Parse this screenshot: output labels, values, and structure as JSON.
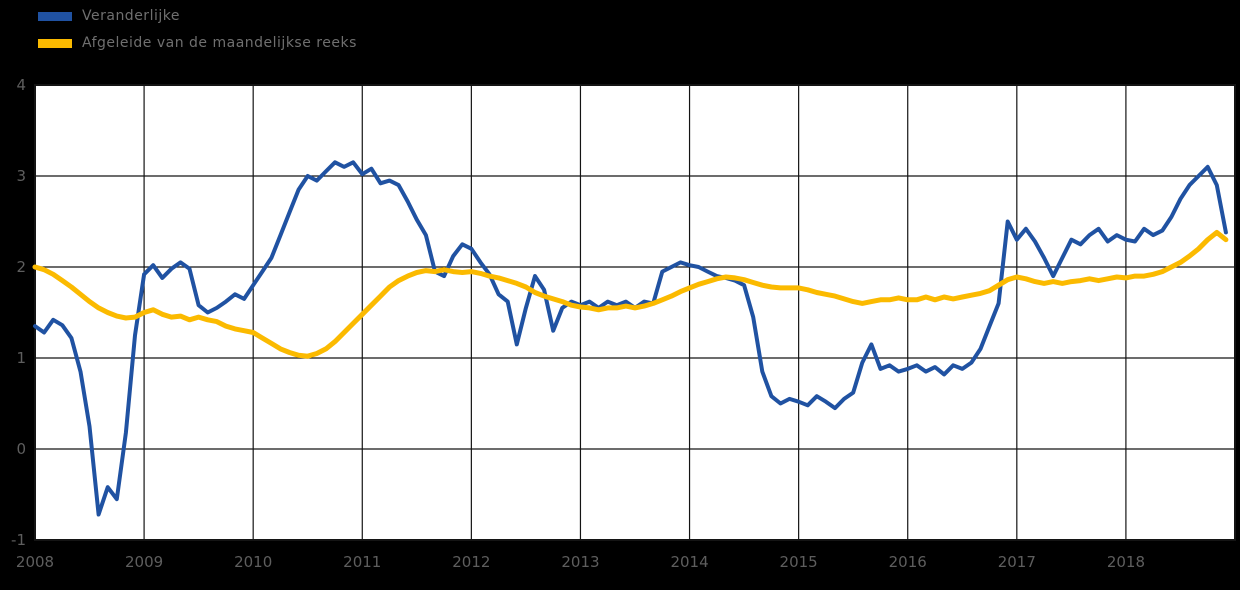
{
  "colors": {
    "background": "#000000",
    "plot_background": "#ffffff",
    "grid": "#141414",
    "axis_text": "#5e5e5e",
    "series_blue": "#2052A2",
    "series_yellow": "#FBBA00"
  },
  "legend": {
    "position": "top-left",
    "items": [
      {
        "label": "Veranderlijke",
        "color": "#2052A2"
      },
      {
        "label": "Afgeleide van de maandelijkse reeks",
        "color": "#FBBA00"
      }
    ]
  },
  "chart_data": {
    "type": "line",
    "title": "",
    "xlabel": "",
    "ylabel": "",
    "grid": true,
    "legend_position": "top-left",
    "ylim": [
      -1,
      4
    ],
    "y_tick_labels": [
      "4",
      "3",
      "2",
      "1",
      "0",
      "-1"
    ],
    "x_tick_labels": [
      "2008",
      "2009",
      "2010",
      "2011",
      "2012",
      "2013",
      "2014",
      "2015",
      "2016",
      "2017",
      "2018"
    ],
    "x_axis_span_years": 11,
    "points_per_year": 12,
    "x_start_year": 2008,
    "series": [
      {
        "name": "Veranderlijke",
        "color": "#2052A2",
        "stroke_width": 4,
        "values": [
          1.35,
          1.28,
          1.42,
          1.36,
          1.22,
          0.85,
          0.25,
          -0.72,
          -0.42,
          -0.55,
          0.18,
          1.25,
          1.92,
          2.02,
          1.88,
          1.98,
          2.05,
          1.98,
          1.58,
          1.5,
          1.55,
          1.62,
          1.7,
          1.65,
          1.8,
          1.95,
          2.1,
          2.35,
          2.6,
          2.85,
          3.0,
          2.95,
          3.05,
          3.15,
          3.1,
          3.15,
          3.02,
          3.08,
          2.92,
          2.95,
          2.9,
          2.72,
          2.52,
          2.35,
          1.95,
          1.9,
          2.12,
          2.25,
          2.2,
          2.05,
          1.92,
          1.7,
          1.62,
          1.15,
          1.55,
          1.9,
          1.75,
          1.3,
          1.55,
          1.62,
          1.58,
          1.62,
          1.55,
          1.62,
          1.58,
          1.62,
          1.55,
          1.62,
          1.6,
          1.95,
          2.0,
          2.05,
          2.02,
          2.0,
          1.95,
          1.9,
          1.88,
          1.85,
          1.8,
          1.45,
          0.85,
          0.58,
          0.5,
          0.55,
          0.52,
          0.48,
          0.58,
          0.52,
          0.45,
          0.55,
          0.62,
          0.95,
          1.15,
          0.88,
          0.92,
          0.85,
          0.88,
          0.92,
          0.85,
          0.9,
          0.82,
          0.92,
          0.88,
          0.95,
          1.1,
          1.35,
          1.6,
          2.5,
          2.3,
          2.42,
          2.28,
          2.1,
          1.9,
          2.1,
          2.3,
          2.25,
          2.35,
          2.42,
          2.28,
          2.35,
          2.3,
          2.28,
          2.42,
          2.35,
          2.4,
          2.55,
          2.75,
          2.9,
          3.0,
          3.1,
          2.9,
          2.38
        ]
      },
      {
        "name": "Afgeleide van de maandelijkse reeks",
        "color": "#FBBA00",
        "stroke_width": 5,
        "values": [
          2.0,
          1.97,
          1.92,
          1.85,
          1.78,
          1.7,
          1.62,
          1.55,
          1.5,
          1.46,
          1.44,
          1.45,
          1.5,
          1.53,
          1.48,
          1.45,
          1.46,
          1.42,
          1.45,
          1.42,
          1.4,
          1.35,
          1.32,
          1.3,
          1.28,
          1.22,
          1.16,
          1.1,
          1.06,
          1.03,
          1.02,
          1.05,
          1.1,
          1.18,
          1.28,
          1.38,
          1.48,
          1.58,
          1.68,
          1.78,
          1.85,
          1.9,
          1.94,
          1.96,
          1.95,
          1.97,
          1.95,
          1.94,
          1.95,
          1.93,
          1.9,
          1.88,
          1.85,
          1.82,
          1.78,
          1.72,
          1.68,
          1.65,
          1.62,
          1.58,
          1.56,
          1.55,
          1.53,
          1.55,
          1.55,
          1.57,
          1.55,
          1.57,
          1.6,
          1.64,
          1.68,
          1.73,
          1.77,
          1.81,
          1.84,
          1.87,
          1.89,
          1.88,
          1.86,
          1.83,
          1.8,
          1.78,
          1.77,
          1.77,
          1.77,
          1.75,
          1.72,
          1.7,
          1.68,
          1.65,
          1.62,
          1.6,
          1.62,
          1.64,
          1.64,
          1.66,
          1.64,
          1.64,
          1.67,
          1.64,
          1.67,
          1.65,
          1.67,
          1.69,
          1.71,
          1.74,
          1.8,
          1.86,
          1.89,
          1.87,
          1.84,
          1.82,
          1.84,
          1.82,
          1.84,
          1.85,
          1.87,
          1.85,
          1.87,
          1.89,
          1.88,
          1.9,
          1.9,
          1.92,
          1.95,
          2.0,
          2.05,
          2.12,
          2.2,
          2.3,
          2.38,
          2.3
        ]
      }
    ]
  }
}
